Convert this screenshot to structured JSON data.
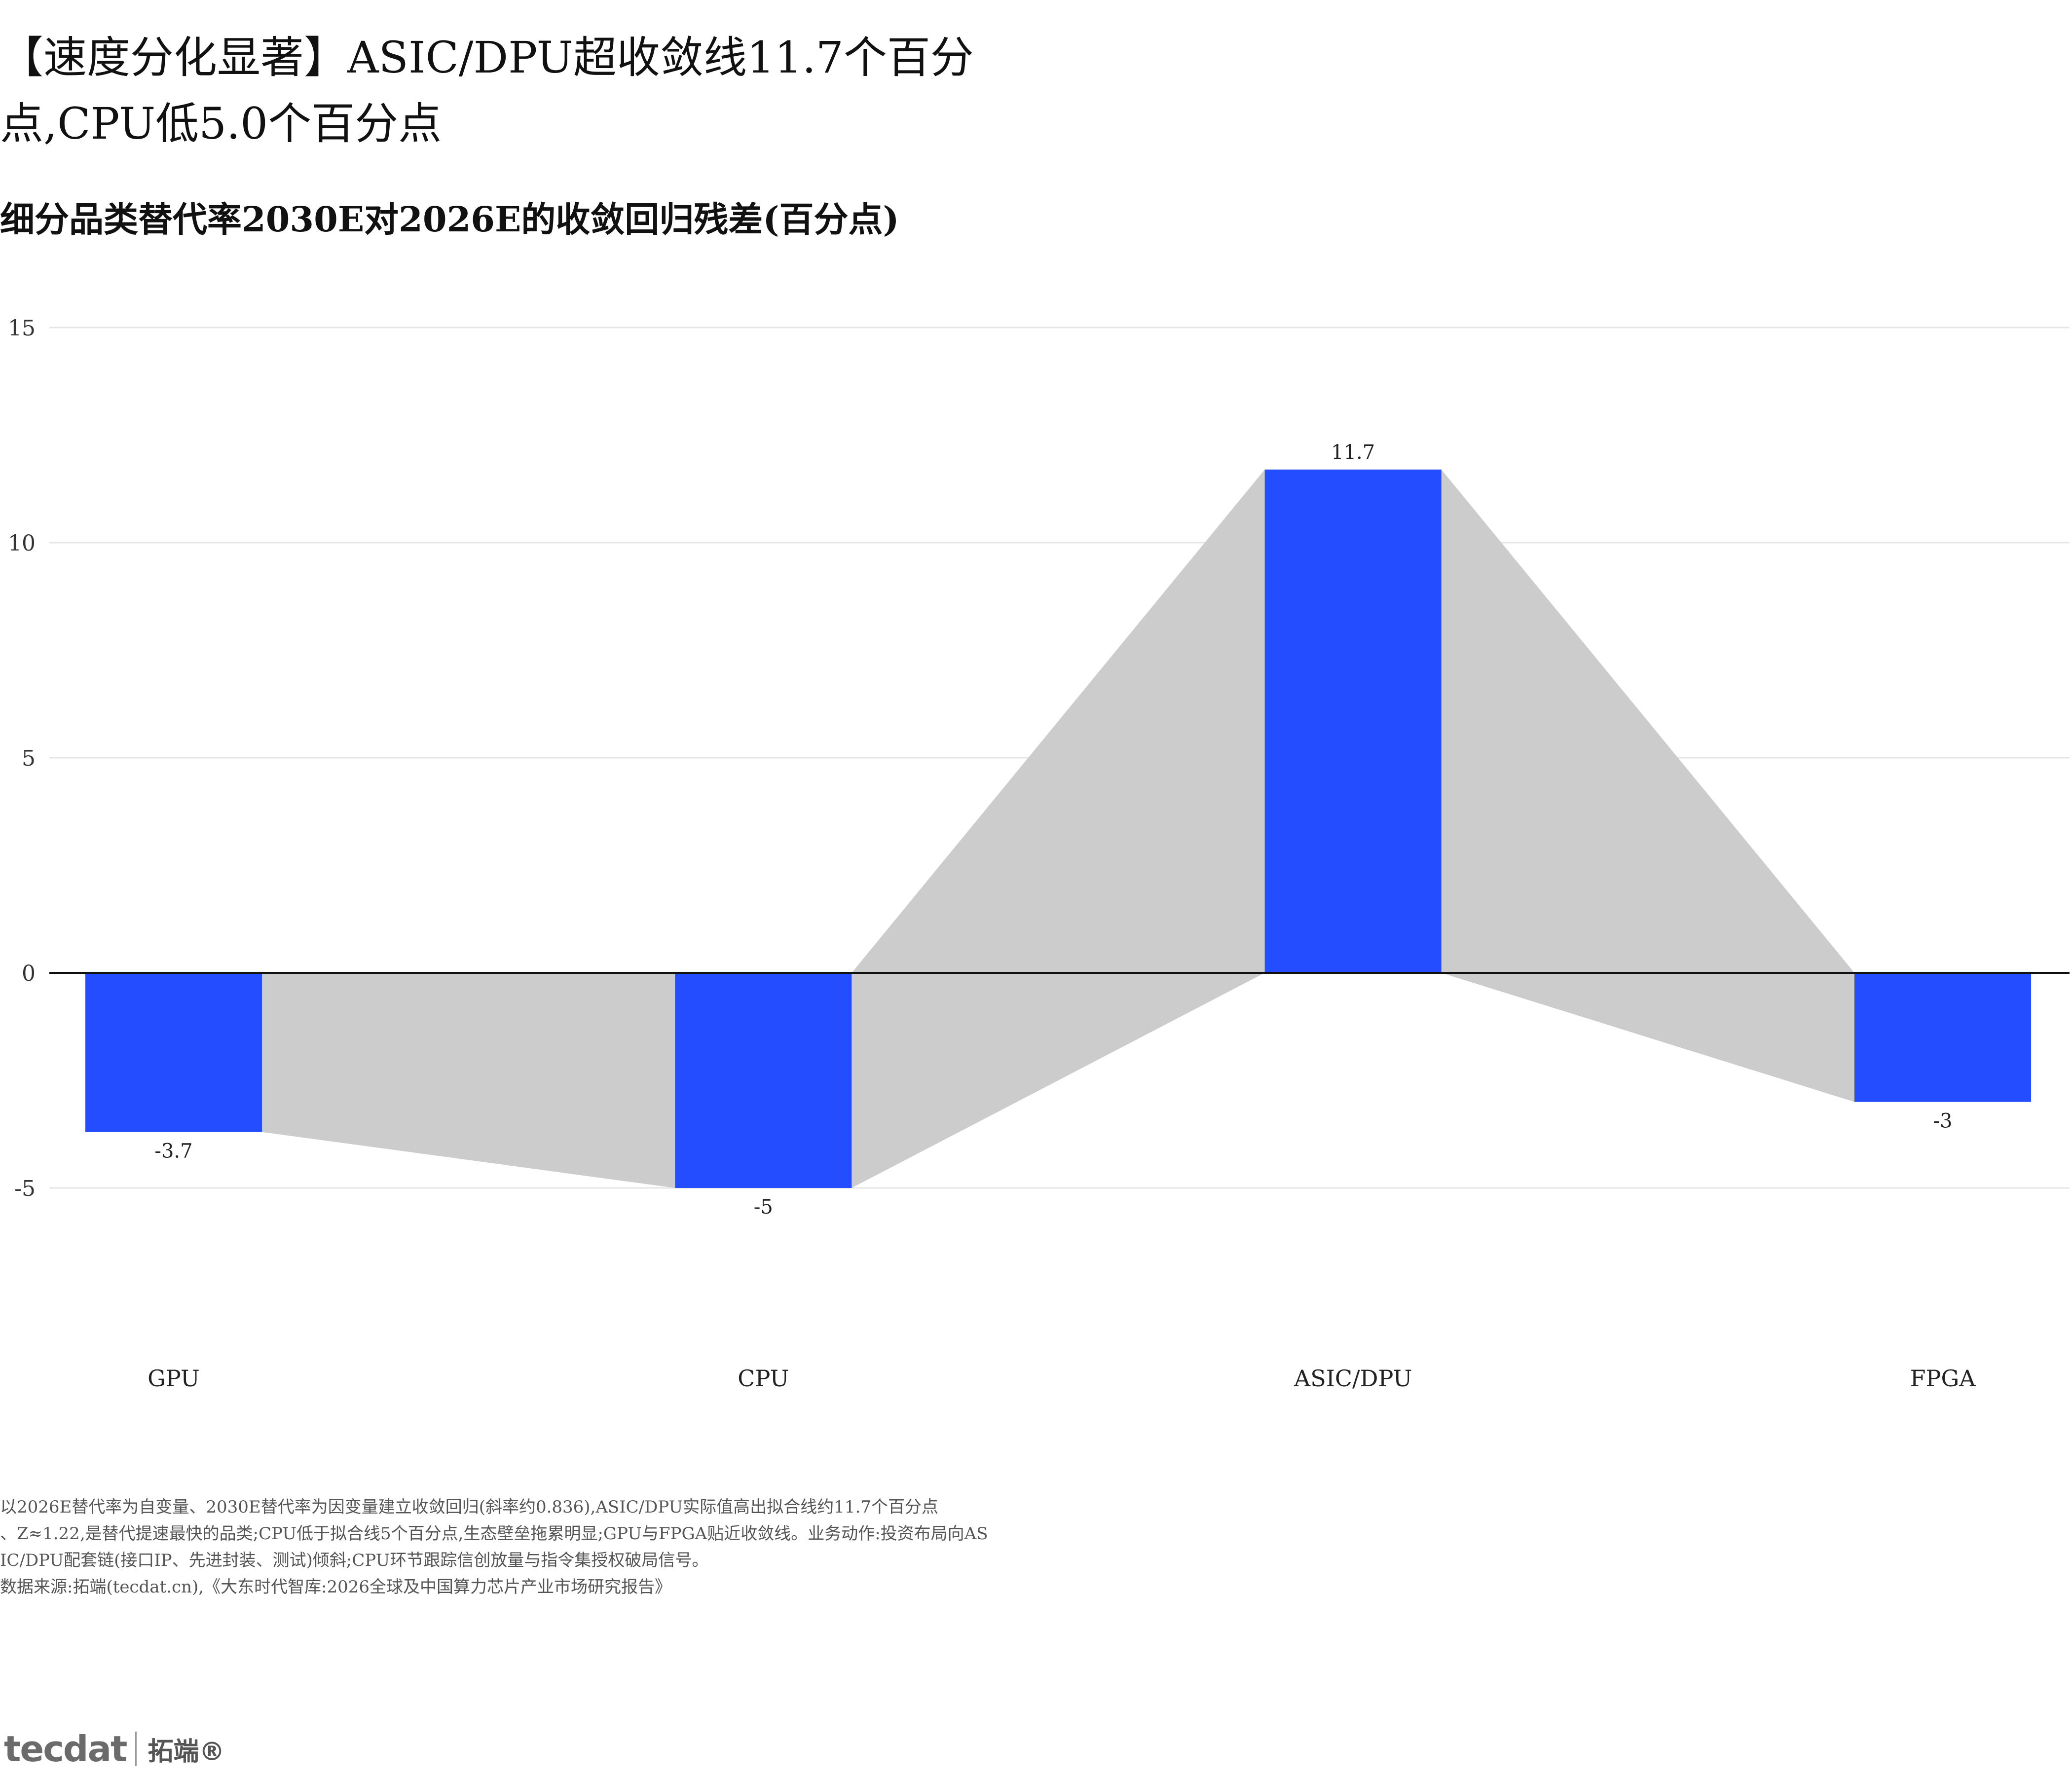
{
  "header": {
    "title": "【速度分化显著】ASIC/DPU超收敛线11.7个百分点,CPU低5.0个百分点",
    "subtitle": "细分品类替代率2030E对2026E的收敛回归残差(百分点)"
  },
  "chart_data": {
    "type": "bar",
    "categories": [
      "GPU",
      "CPU",
      "ASIC/DPU",
      "FPGA"
    ],
    "values": [
      -3.7,
      -5,
      11.7,
      -3
    ],
    "value_labels": [
      "-3.7",
      "-5",
      "11.7",
      "-3"
    ],
    "ylim": [
      -10,
      15
    ],
    "yticks": [
      -5,
      0,
      5,
      10,
      15
    ],
    "ytick_labels": [
      "-5",
      "0",
      "5",
      "10",
      "15"
    ],
    "grid": "horizontal",
    "bar_color": "#234dff",
    "area_color": "#cccccc",
    "legend": "none"
  },
  "footnote": {
    "lines": [
      "以2026E替代率为自变量、2030E替代率为因变量建立收敛回归(斜率约0.836),ASIC/DPU实际值高出拟合线约11.7个百分点",
      "、Z≈1.22,是替代提速最快的品类;CPU低于拟合线5个百分点,生态壁垒拖累明显;GPU与FPGA贴近收敛线。业务动作:投资布局向AS",
      "IC/DPU配套链(接口IP、先进封装、测试)倾斜;CPU环节跟踪信创放量与指令集授权破局信号。",
      "数据来源:拓端(tecdat.cn),《大东时代智库:2026全球及中国算力芯片产业市场研究报告》"
    ]
  },
  "logo": {
    "word": "tecdat",
    "cn": "拓端®"
  }
}
